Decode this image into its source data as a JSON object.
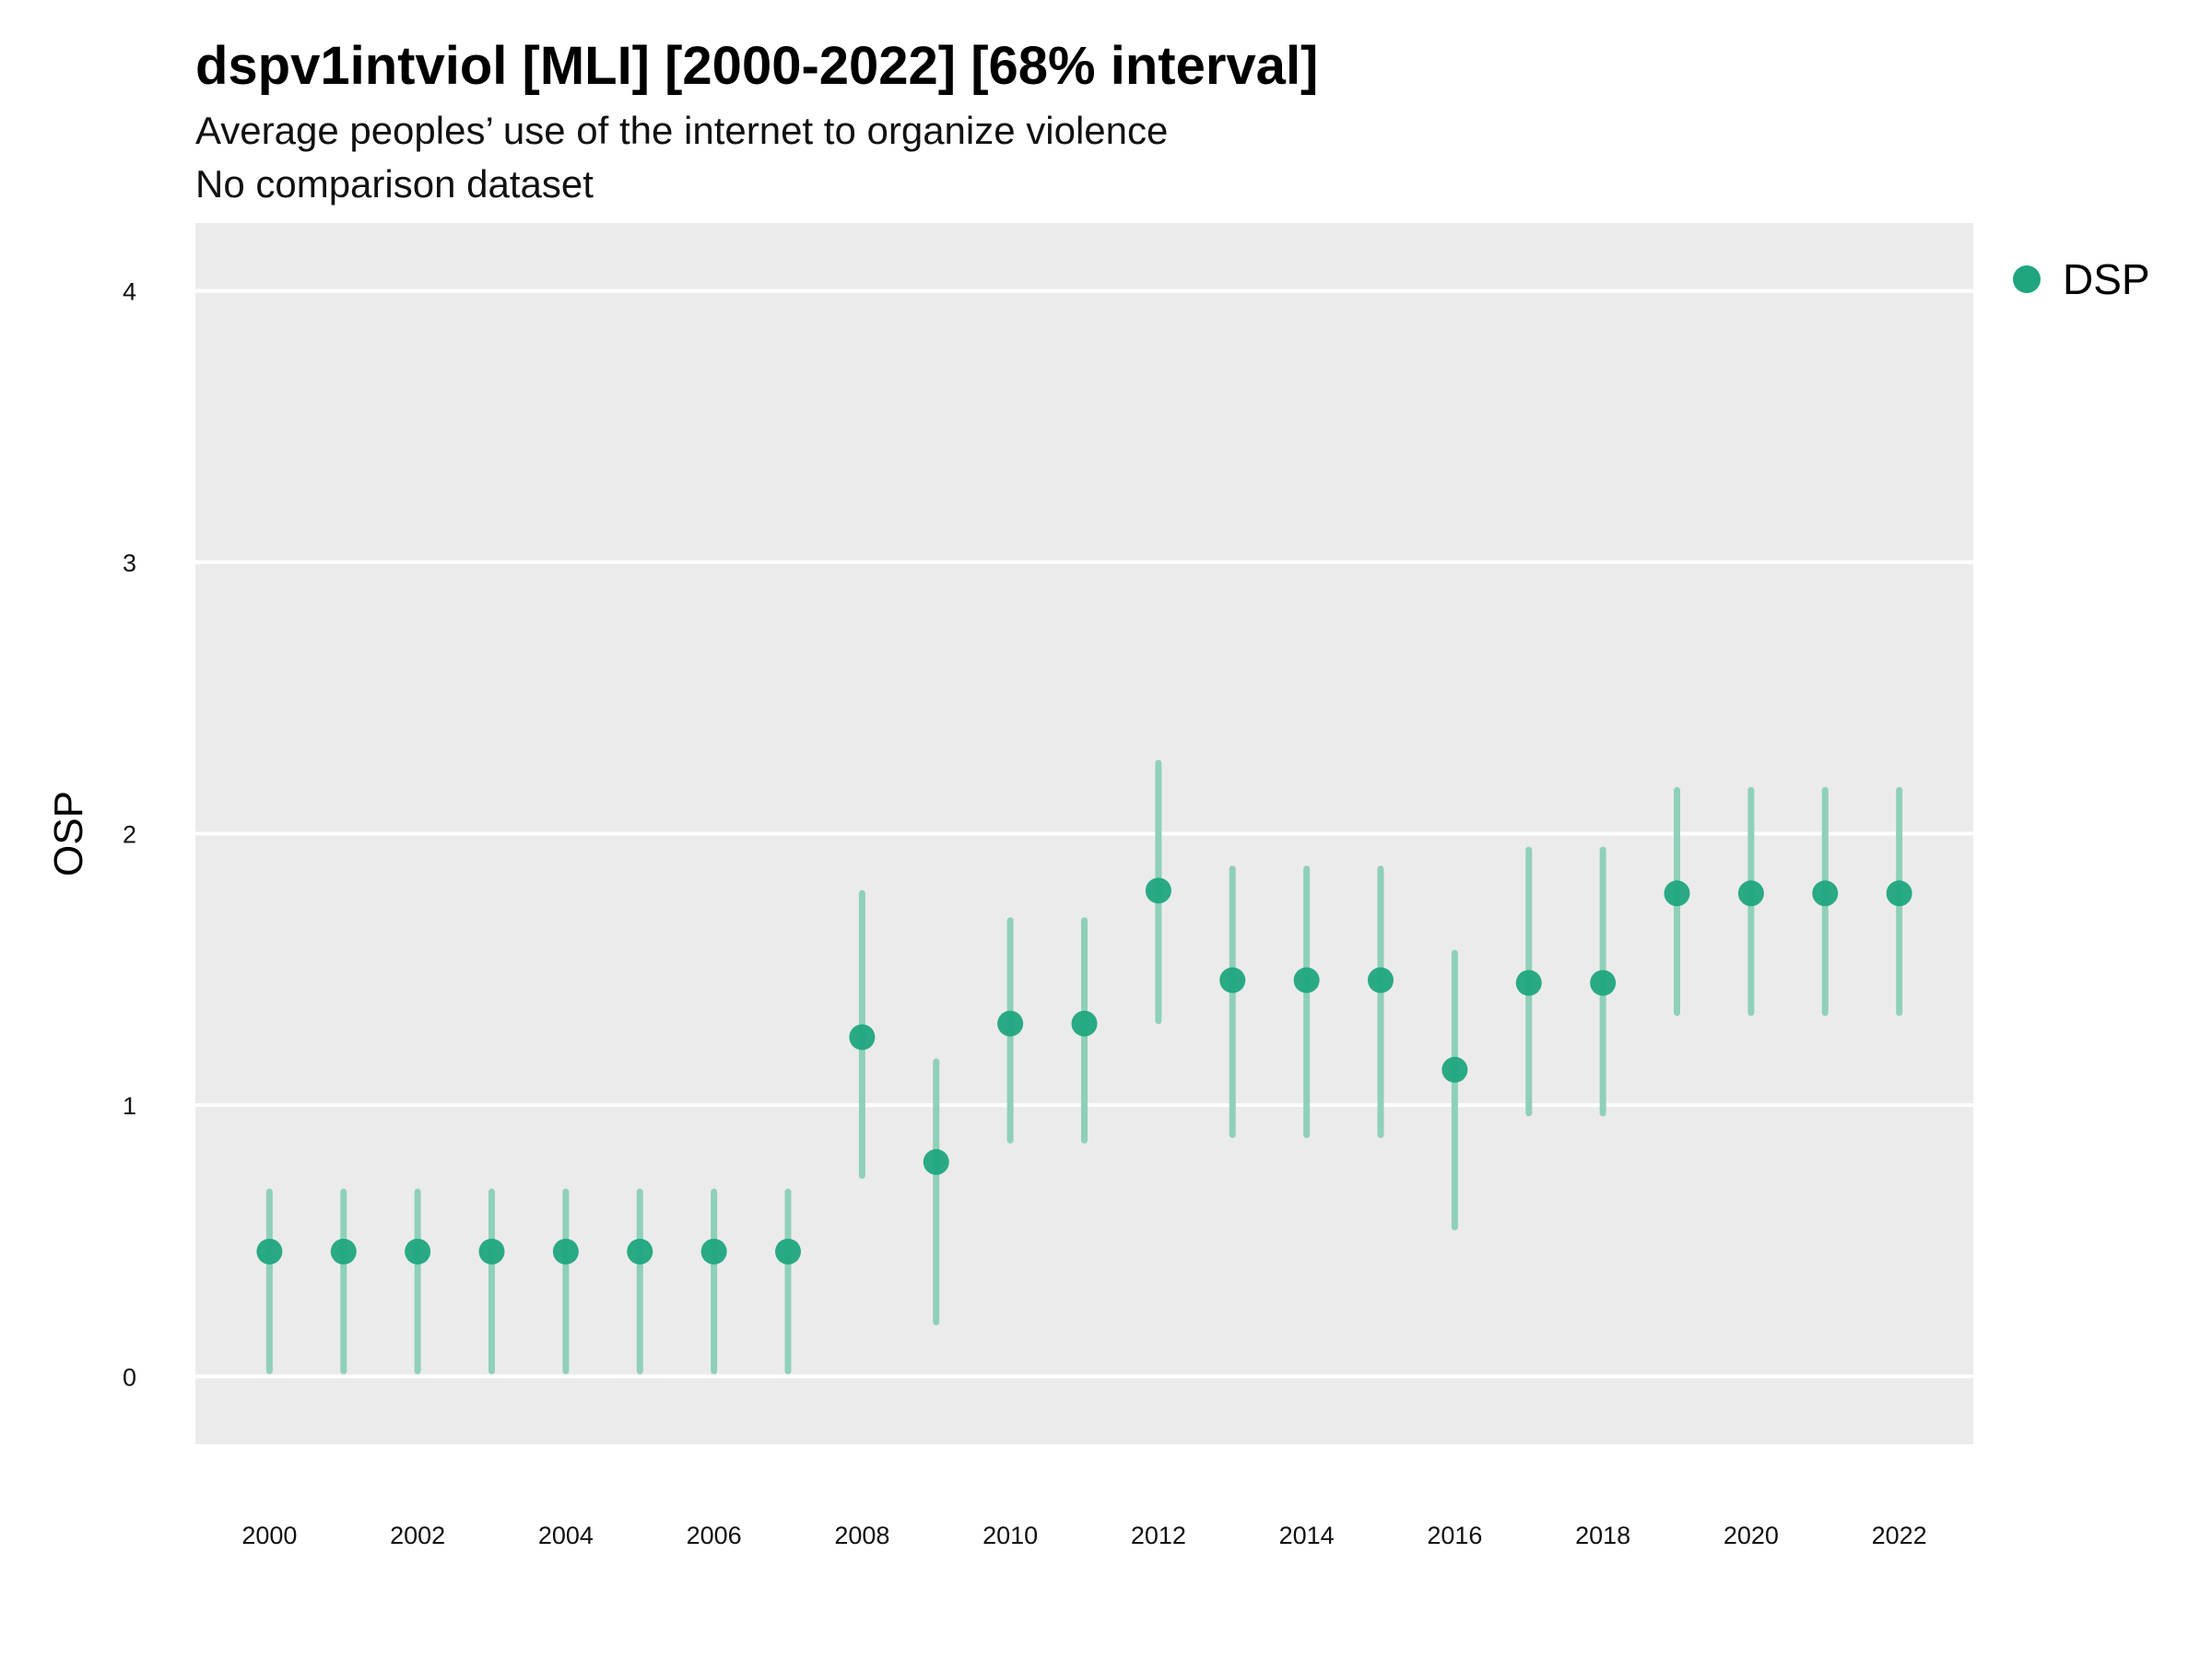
{
  "title": "dspv1intviol [MLI] [2000-2022] [68% interval]",
  "subtitle": "Average peoples’ use of the internet to organize violence",
  "caption": "No comparison dataset",
  "colors": {
    "panel": "#ebebeb",
    "grid": "#ffffff",
    "point": "#1fa67e",
    "interval": "#8fd0b9"
  },
  "chart_data": {
    "type": "scatter",
    "title": "dspv1intviol [MLI] [2000-2022] [68% interval]",
    "xlabel": "",
    "ylabel": "OSP",
    "xlim": [
      1999,
      2023
    ],
    "ylim": [
      -0.25,
      4.25
    ],
    "x_ticks": [
      2000,
      2002,
      2004,
      2006,
      2008,
      2010,
      2012,
      2014,
      2016,
      2018,
      2020,
      2022
    ],
    "y_ticks": [
      0,
      1,
      2,
      3,
      4
    ],
    "grid": true,
    "legend_position": "top-right",
    "series": [
      {
        "name": "DSP",
        "x": [
          2000,
          2001,
          2002,
          2003,
          2004,
          2005,
          2006,
          2007,
          2008,
          2009,
          2010,
          2011,
          2012,
          2013,
          2014,
          2015,
          2016,
          2017,
          2018,
          2019,
          2020,
          2021,
          2022
        ],
        "y": [
          0.46,
          0.46,
          0.46,
          0.46,
          0.46,
          0.46,
          0.46,
          0.46,
          1.25,
          0.79,
          1.3,
          1.3,
          1.79,
          1.46,
          1.46,
          1.46,
          1.13,
          1.45,
          1.45,
          1.78,
          1.78,
          1.78,
          1.78
        ],
        "lower": [
          0.02,
          0.02,
          0.02,
          0.02,
          0.02,
          0.02,
          0.02,
          0.02,
          0.74,
          0.2,
          0.87,
          0.87,
          1.31,
          0.89,
          0.89,
          0.89,
          0.55,
          0.97,
          0.97,
          1.34,
          1.34,
          1.34,
          1.34
        ],
        "upper": [
          0.68,
          0.68,
          0.68,
          0.68,
          0.68,
          0.68,
          0.68,
          0.68,
          1.78,
          1.16,
          1.68,
          1.68,
          2.26,
          1.87,
          1.87,
          1.87,
          1.56,
          1.94,
          1.94,
          2.16,
          2.16,
          2.16,
          2.16
        ]
      }
    ]
  }
}
